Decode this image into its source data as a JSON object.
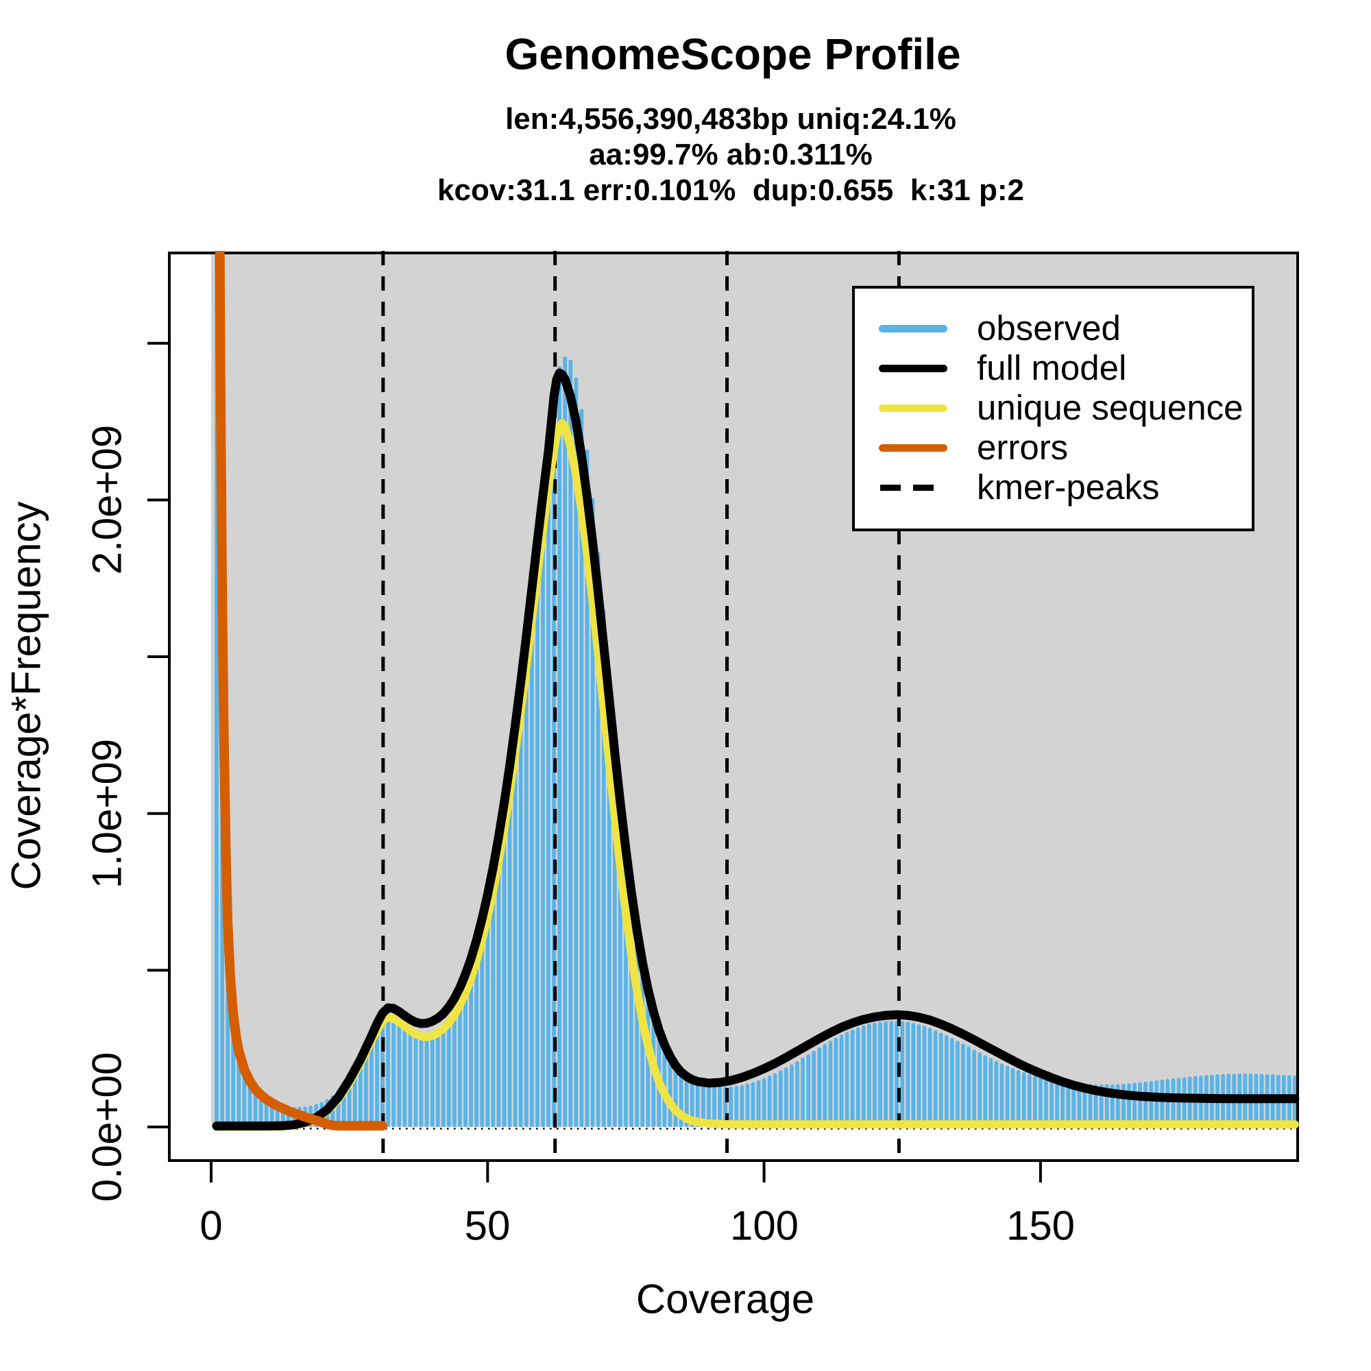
{
  "chart_data": {
    "type": "bar",
    "title": "GenomeScope Profile",
    "subtitle_lines": [
      "len:4,556,390,483bp uniq:24.1%",
      "aa:99.7% ab:0.311%",
      "kcov:31.1 err:0.101%  dup:0.655  k:31 p:2"
    ],
    "xlabel": "Coverage",
    "ylabel": "Coverage*Frequency",
    "xlim": [
      0,
      196.5
    ],
    "ylim_e9": [
      0,
      2.79
    ],
    "background_color": "#D3D3D3",
    "grid": false,
    "legend_position": "top-right",
    "x_axis": {
      "tick_values": [
        0,
        50,
        100,
        150
      ],
      "tick_labels": [
        "0",
        "50",
        "100",
        "150"
      ]
    },
    "y_axis": {
      "tick_values_e9": [
        0,
        0.5,
        1.0,
        1.5,
        2.0,
        2.5
      ],
      "labeled_tick_values_e9": [
        0,
        1.0,
        2.0
      ],
      "tick_labels": [
        "0.0e+00",
        "1.0e+09",
        "2.0e+09"
      ]
    },
    "kmer_peaks": [
      31.1,
      62.2,
      93.3,
      124.4
    ],
    "colors": {
      "observed": "#56B4E9",
      "full_model": "#000000",
      "unique_sequence": "#F0E442",
      "errors": "#D55E00",
      "kmer_peaks": "#000000",
      "background": "#D3D3D3"
    },
    "legend": {
      "items": [
        {
          "label": "observed",
          "color_key": "observed",
          "style": "solid"
        },
        {
          "label": "full model",
          "color_key": "full_model",
          "style": "solid"
        },
        {
          "label": "unique sequence",
          "color_key": "unique_sequence",
          "style": "solid"
        },
        {
          "label": "errors",
          "color_key": "errors",
          "style": "solid"
        },
        {
          "label": "kmer-peaks",
          "color_key": "kmer_peaks",
          "style": "dashed"
        }
      ]
    },
    "series": {
      "observed": {
        "name": "observed",
        "render": "histogram-bars",
        "start_coverage": 1,
        "unit": "1e9",
        "values_e9": [
          2.9,
          2.9,
          0.72,
          0.4,
          0.26,
          0.18,
          0.135,
          0.108,
          0.09,
          0.079,
          0.071,
          0.066,
          0.062,
          0.059,
          0.058,
          0.058,
          0.059,
          0.062,
          0.067,
          0.074,
          0.083,
          0.095,
          0.11,
          0.128,
          0.15,
          0.175,
          0.203,
          0.233,
          0.263,
          0.292,
          0.316,
          0.332,
          0.339,
          0.337,
          0.327,
          0.314,
          0.301,
          0.291,
          0.285,
          0.284,
          0.289,
          0.3,
          0.317,
          0.341,
          0.372,
          0.411,
          0.458,
          0.515,
          0.583,
          0.662,
          0.754,
          0.859,
          0.977,
          1.108,
          1.252,
          1.407,
          1.57,
          1.738,
          1.905,
          2.064,
          2.208,
          2.33,
          2.421,
          2.452,
          2.442,
          2.385,
          2.285,
          2.155,
          2.0,
          1.828,
          1.646,
          1.462,
          1.282,
          1.111,
          0.953,
          0.81,
          0.683,
          0.573,
          0.479,
          0.4,
          0.335,
          0.282,
          0.24,
          0.207,
          0.182,
          0.163,
          0.149,
          0.139,
          0.132,
          0.127,
          0.124,
          0.122,
          0.122,
          0.123,
          0.125,
          0.128,
          0.132,
          0.137,
          0.143,
          0.15,
          0.158,
          0.166,
          0.175,
          0.184,
          0.194,
          0.204,
          0.215,
          0.226,
          0.237,
          0.248,
          0.259,
          0.269,
          0.279,
          0.289,
          0.297,
          0.305,
          0.312,
          0.318,
          0.323,
          0.327,
          0.33,
          0.332,
          0.333,
          0.333,
          0.332,
          0.33,
          0.326,
          0.322,
          0.316,
          0.31,
          0.303,
          0.295,
          0.287,
          0.278,
          0.269,
          0.26,
          0.251,
          0.241,
          0.232,
          0.223,
          0.214,
          0.205,
          0.197,
          0.189,
          0.182,
          0.175,
          0.169,
          0.163,
          0.158,
          0.153,
          0.149,
          0.145,
          0.142,
          0.139,
          0.137,
          0.135,
          0.133,
          0.132,
          0.131,
          0.13,
          0.13,
          0.13,
          0.13,
          0.131,
          0.132,
          0.133,
          0.135,
          0.137,
          0.139,
          0.141,
          0.143,
          0.145,
          0.147,
          0.149,
          0.151,
          0.153,
          0.155,
          0.157,
          0.158,
          0.16,
          0.161,
          0.162,
          0.163,
          0.164,
          0.164,
          0.165,
          0.165,
          0.165,
          0.164,
          0.164,
          0.163,
          0.162,
          0.161,
          0.16,
          0.159,
          0.158
        ]
      },
      "full_model": {
        "name": "full model",
        "render": "line",
        "unit": "1e9",
        "points": [
          [
            1,
            0.003
          ],
          [
            6,
            0.003
          ],
          [
            10,
            0.003
          ],
          [
            13,
            0.004
          ],
          [
            15,
            0.007
          ],
          [
            17,
            0.015
          ],
          [
            19,
            0.03
          ],
          [
            21,
            0.055
          ],
          [
            23,
            0.095
          ],
          [
            25,
            0.15
          ],
          [
            27,
            0.215
          ],
          [
            29,
            0.29
          ],
          [
            30,
            0.33
          ],
          [
            31,
            0.363
          ],
          [
            32,
            0.38
          ],
          [
            33,
            0.378
          ],
          [
            34,
            0.368
          ],
          [
            35,
            0.355
          ],
          [
            36,
            0.343
          ],
          [
            37,
            0.334
          ],
          [
            38,
            0.33
          ],
          [
            39,
            0.331
          ],
          [
            40,
            0.337
          ],
          [
            41,
            0.347
          ],
          [
            42,
            0.362
          ],
          [
            43,
            0.383
          ],
          [
            44,
            0.41
          ],
          [
            45,
            0.445
          ],
          [
            46,
            0.487
          ],
          [
            47,
            0.537
          ],
          [
            48,
            0.596
          ],
          [
            49,
            0.664
          ],
          [
            50,
            0.741
          ],
          [
            51,
            0.828
          ],
          [
            52,
            0.925
          ],
          [
            53,
            1.033
          ],
          [
            54,
            1.152
          ],
          [
            55,
            1.281
          ],
          [
            56,
            1.419
          ],
          [
            57,
            1.565
          ],
          [
            58,
            1.716
          ],
          [
            59,
            1.868
          ],
          [
            60,
            2.016
          ],
          [
            61,
            2.155
          ],
          [
            62,
            2.33
          ],
          [
            62.5,
            2.385
          ],
          [
            63,
            2.405
          ],
          [
            63.5,
            2.4
          ],
          [
            64,
            2.385
          ],
          [
            65,
            2.33
          ],
          [
            66,
            2.25
          ],
          [
            67,
            2.14
          ],
          [
            68,
            2.01
          ],
          [
            69,
            1.865
          ],
          [
            70,
            1.705
          ],
          [
            71,
            1.535
          ],
          [
            72,
            1.365
          ],
          [
            73,
            1.195
          ],
          [
            74,
            1.035
          ],
          [
            75,
            0.885
          ],
          [
            76,
            0.75
          ],
          [
            77,
            0.63
          ],
          [
            78,
            0.527
          ],
          [
            79,
            0.44
          ],
          [
            80,
            0.368
          ],
          [
            81,
            0.309
          ],
          [
            82,
            0.262
          ],
          [
            83,
            0.225
          ],
          [
            84,
            0.196
          ],
          [
            85,
            0.175
          ],
          [
            86,
            0.161
          ],
          [
            87,
            0.151
          ],
          [
            88,
            0.145
          ],
          [
            90,
            0.14
          ],
          [
            92,
            0.142
          ],
          [
            94,
            0.148
          ],
          [
            96,
            0.158
          ],
          [
            98,
            0.171
          ],
          [
            100,
            0.186
          ],
          [
            102,
            0.203
          ],
          [
            104,
            0.222
          ],
          [
            106,
            0.242
          ],
          [
            108,
            0.262
          ],
          [
            110,
            0.282
          ],
          [
            112,
            0.301
          ],
          [
            114,
            0.318
          ],
          [
            116,
            0.332
          ],
          [
            118,
            0.343
          ],
          [
            120,
            0.351
          ],
          [
            122,
            0.356
          ],
          [
            124,
            0.358
          ],
          [
            126,
            0.356
          ],
          [
            128,
            0.35
          ],
          [
            130,
            0.341
          ],
          [
            132,
            0.328
          ],
          [
            134,
            0.313
          ],
          [
            136,
            0.296
          ],
          [
            138,
            0.278
          ],
          [
            140,
            0.259
          ],
          [
            142,
            0.24
          ],
          [
            144,
            0.221
          ],
          [
            146,
            0.203
          ],
          [
            148,
            0.186
          ],
          [
            150,
            0.171
          ],
          [
            152,
            0.157
          ],
          [
            154,
            0.144
          ],
          [
            156,
            0.133
          ],
          [
            158,
            0.124
          ],
          [
            160,
            0.116
          ],
          [
            162,
            0.11
          ],
          [
            164,
            0.105
          ],
          [
            166,
            0.101
          ],
          [
            168,
            0.098
          ],
          [
            170,
            0.096
          ],
          [
            172,
            0.094
          ],
          [
            174,
            0.093
          ],
          [
            176,
            0.092
          ],
          [
            180,
            0.091
          ],
          [
            184,
            0.09
          ],
          [
            188,
            0.09
          ],
          [
            192,
            0.09
          ],
          [
            196,
            0.09
          ]
        ]
      },
      "unique_sequence": {
        "name": "unique sequence",
        "render": "line",
        "unit": "1e9",
        "points": [
          [
            1,
            0.001
          ],
          [
            10,
            0.001
          ],
          [
            13,
            0.002
          ],
          [
            15,
            0.005
          ],
          [
            17,
            0.012
          ],
          [
            19,
            0.026
          ],
          [
            21,
            0.05
          ],
          [
            23,
            0.088
          ],
          [
            25,
            0.14
          ],
          [
            27,
            0.203
          ],
          [
            29,
            0.275
          ],
          [
            30,
            0.308
          ],
          [
            31,
            0.337
          ],
          [
            32,
            0.35
          ],
          [
            33,
            0.346
          ],
          [
            34,
            0.335
          ],
          [
            35,
            0.321
          ],
          [
            36,
            0.307
          ],
          [
            37,
            0.296
          ],
          [
            38,
            0.289
          ],
          [
            39,
            0.287
          ],
          [
            40,
            0.291
          ],
          [
            41,
            0.3
          ],
          [
            42,
            0.313
          ],
          [
            43,
            0.332
          ],
          [
            44,
            0.357
          ],
          [
            45,
            0.389
          ],
          [
            46,
            0.428
          ],
          [
            47,
            0.475
          ],
          [
            48,
            0.531
          ],
          [
            49,
            0.596
          ],
          [
            50,
            0.67
          ],
          [
            51,
            0.754
          ],
          [
            52,
            0.848
          ],
          [
            53,
            0.953
          ],
          [
            54,
            1.068
          ],
          [
            55,
            1.193
          ],
          [
            56,
            1.327
          ],
          [
            57,
            1.469
          ],
          [
            58,
            1.615
          ],
          [
            59,
            1.763
          ],
          [
            60,
            1.907
          ],
          [
            61,
            2.042
          ],
          [
            62,
            2.16
          ],
          [
            62.5,
            2.205
          ],
          [
            63,
            2.235
          ],
          [
            63.5,
            2.245
          ],
          [
            64,
            2.235
          ],
          [
            65,
            2.17
          ],
          [
            66,
            2.08
          ],
          [
            67,
            1.965
          ],
          [
            68,
            1.83
          ],
          [
            69,
            1.675
          ],
          [
            70,
            1.51
          ],
          [
            71,
            1.335
          ],
          [
            72,
            1.16
          ],
          [
            73,
            0.99
          ],
          [
            74,
            0.83
          ],
          [
            75,
            0.683
          ],
          [
            76,
            0.551
          ],
          [
            77,
            0.437
          ],
          [
            78,
            0.34
          ],
          [
            79,
            0.26
          ],
          [
            80,
            0.195
          ],
          [
            81,
            0.144
          ],
          [
            82,
            0.105
          ],
          [
            83,
            0.075
          ],
          [
            84,
            0.053
          ],
          [
            85,
            0.038
          ],
          [
            86,
            0.027
          ],
          [
            87,
            0.02
          ],
          [
            88,
            0.016
          ],
          [
            90,
            0.011
          ],
          [
            92,
            0.009
          ],
          [
            95,
            0.008
          ],
          [
            100,
            0.008
          ],
          [
            110,
            0.008
          ],
          [
            130,
            0.008
          ],
          [
            150,
            0.008
          ],
          [
            170,
            0.008
          ],
          [
            196,
            0.008
          ]
        ]
      },
      "errors": {
        "name": "errors",
        "render": "line",
        "unit": "1e9",
        "points": [
          [
            1.2,
            3.0
          ],
          [
            1.5,
            3.0
          ],
          [
            1.7,
            2.4
          ],
          [
            2,
            1.7
          ],
          [
            2.3,
            1.25
          ],
          [
            2.7,
            0.85
          ],
          [
            3,
            0.65
          ],
          [
            3.5,
            0.47
          ],
          [
            4,
            0.36
          ],
          [
            4.5,
            0.29
          ],
          [
            5,
            0.243
          ],
          [
            6,
            0.183
          ],
          [
            7,
            0.146
          ],
          [
            8,
            0.12
          ],
          [
            9,
            0.102
          ],
          [
            10,
            0.088
          ],
          [
            11,
            0.077
          ],
          [
            12,
            0.067
          ],
          [
            13,
            0.059
          ],
          [
            14,
            0.051
          ],
          [
            15,
            0.044
          ],
          [
            16,
            0.038
          ],
          [
            17,
            0.032
          ],
          [
            18,
            0.026
          ],
          [
            19,
            0.021
          ],
          [
            20,
            0.015
          ],
          [
            21,
            0.009
          ],
          [
            22,
            0.005
          ],
          [
            23,
            0.004
          ],
          [
            26,
            0.004
          ],
          [
            29,
            0.004
          ],
          [
            31,
            0.004
          ]
        ]
      }
    }
  }
}
